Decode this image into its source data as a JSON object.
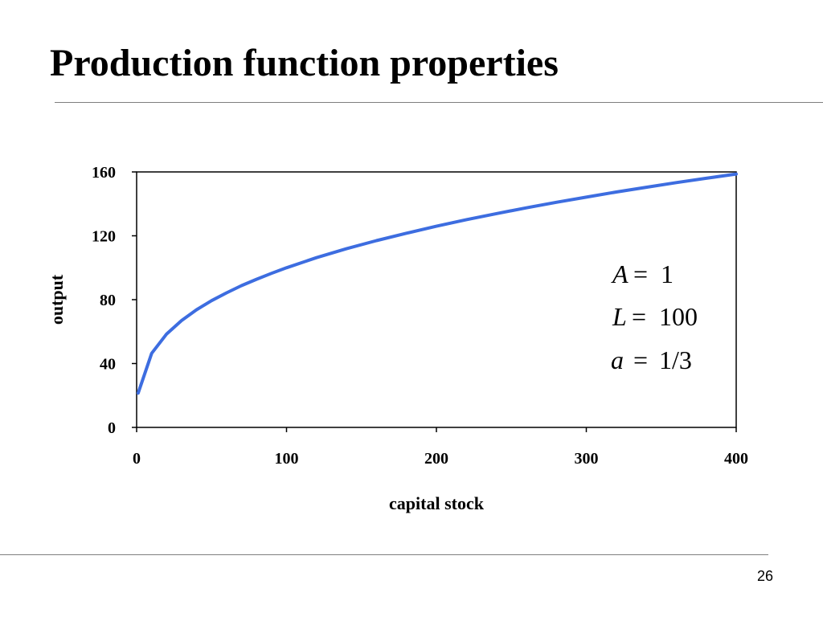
{
  "slide": {
    "title": "Production function properties",
    "page_number": "26"
  },
  "chart_data": {
    "type": "line",
    "title": "",
    "xlabel": "capital stock",
    "ylabel": "output",
    "xlim": [
      0,
      400
    ],
    "ylim": [
      0,
      160
    ],
    "xticks": [
      0,
      100,
      200,
      300,
      400
    ],
    "yticks": [
      0,
      40,
      80,
      120,
      160
    ],
    "grid": false,
    "legend": "none",
    "series": [
      {
        "color": "#3d6de0",
        "x": [
          1,
          10,
          20,
          30,
          40,
          50,
          60,
          70,
          80,
          90,
          100,
          120,
          140,
          160,
          180,
          200,
          220,
          240,
          260,
          280,
          300,
          320,
          340,
          360,
          380,
          400
        ],
        "y": [
          21.5,
          46.4,
          58.5,
          66.9,
          73.7,
          79.4,
          84.3,
          88.8,
          92.8,
          96.5,
          100.0,
          106.3,
          111.9,
          117.0,
          121.6,
          126.0,
          130.1,
          133.9,
          137.5,
          141.0,
          144.2,
          147.4,
          150.4,
          153.3,
          156.0,
          158.7
        ]
      }
    ],
    "annotations": [
      {
        "symbol": "A",
        "rel": "=",
        "value": "1"
      },
      {
        "symbol": "L",
        "rel": "=",
        "value": "100"
      },
      {
        "symbol": "a",
        "rel": "=",
        "value": "1/3"
      }
    ]
  }
}
